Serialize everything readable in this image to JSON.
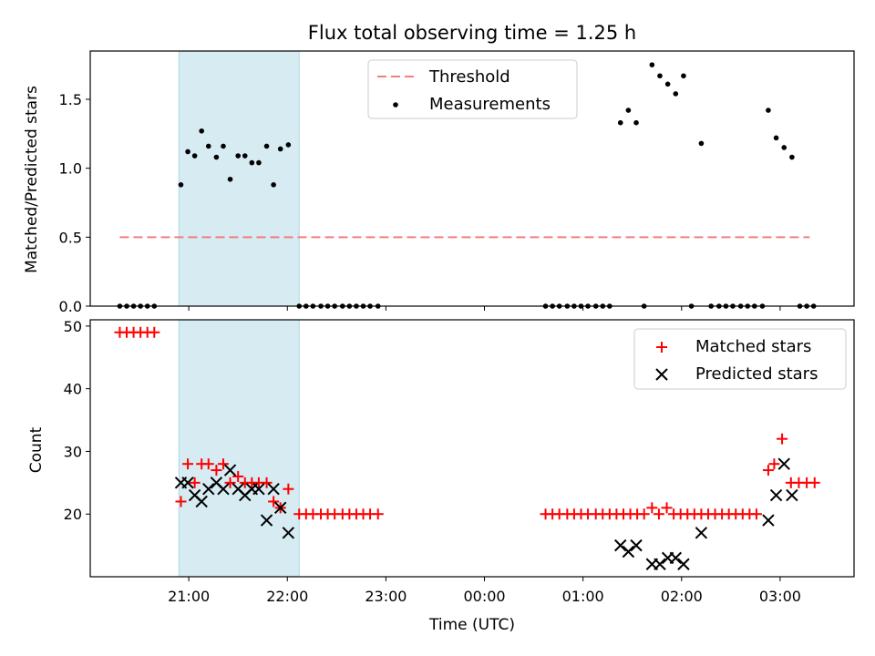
{
  "figure": {
    "title": "Flux total observing time = 1.25 h",
    "xlabel": "Time (UTC)",
    "x_ticks": [
      "21:00",
      "22:00",
      "23:00",
      "00:00",
      "01:00",
      "02:00",
      "03:00"
    ]
  },
  "chart_data": [
    {
      "type": "scatter",
      "panel": "top",
      "title": "Flux total observing time = 1.25 h",
      "ylabel": "Matched/Predicted stars",
      "xlim_hours": [
        20.0,
        27.75
      ],
      "ylim": [
        0,
        1.85
      ],
      "y_ticks": [
        0.0,
        0.5,
        1.0,
        1.5
      ],
      "y_tick_labels": [
        "0.0",
        "0.5",
        "1.0",
        "1.5"
      ],
      "legend_position": "top-center",
      "shaded_interval_hours": [
        20.9,
        22.12
      ],
      "shade_color": "#add8e6",
      "threshold": {
        "name": "Threshold",
        "y": 0.5,
        "x_range_hours": [
          20.3,
          27.3
        ],
        "color": "#f08080"
      },
      "measurements": {
        "name": "Measurements",
        "color": "#000000",
        "points": [
          [
            20.3,
            0.0
          ],
          [
            20.37,
            0.0
          ],
          [
            20.44,
            0.0
          ],
          [
            20.51,
            0.0
          ],
          [
            20.58,
            0.0
          ],
          [
            20.65,
            0.0
          ],
          [
            20.92,
            0.88
          ],
          [
            20.99,
            1.12
          ],
          [
            21.06,
            1.09
          ],
          [
            21.13,
            1.27
          ],
          [
            21.2,
            1.16
          ],
          [
            21.28,
            1.08
          ],
          [
            21.35,
            1.16
          ],
          [
            21.42,
            0.92
          ],
          [
            21.5,
            1.09
          ],
          [
            21.57,
            1.09
          ],
          [
            21.64,
            1.04
          ],
          [
            21.71,
            1.04
          ],
          [
            21.79,
            1.16
          ],
          [
            21.86,
            0.88
          ],
          [
            21.93,
            1.14
          ],
          [
            22.01,
            1.17
          ],
          [
            22.12,
            0.0
          ],
          [
            22.19,
            0.0
          ],
          [
            22.26,
            0.0
          ],
          [
            22.34,
            0.0
          ],
          [
            22.41,
            0.0
          ],
          [
            22.48,
            0.0
          ],
          [
            22.56,
            0.0
          ],
          [
            22.63,
            0.0
          ],
          [
            22.7,
            0.0
          ],
          [
            22.77,
            0.0
          ],
          [
            22.84,
            0.0
          ],
          [
            22.92,
            0.0
          ],
          [
            24.62,
            0.0
          ],
          [
            24.69,
            0.0
          ],
          [
            24.76,
            0.0
          ],
          [
            24.84,
            0.0
          ],
          [
            24.91,
            0.0
          ],
          [
            24.98,
            0.0
          ],
          [
            25.05,
            0.0
          ],
          [
            25.13,
            0.0
          ],
          [
            25.2,
            0.0
          ],
          [
            25.27,
            0.0
          ],
          [
            25.38,
            1.33
          ],
          [
            25.46,
            1.42
          ],
          [
            25.54,
            1.33
          ],
          [
            25.62,
            0.0
          ],
          [
            25.7,
            1.75
          ],
          [
            25.78,
            1.67
          ],
          [
            25.86,
            1.61
          ],
          [
            25.94,
            1.54
          ],
          [
            26.02,
            1.67
          ],
          [
            26.1,
            0.0
          ],
          [
            26.2,
            1.18
          ],
          [
            26.3,
            0.0
          ],
          [
            26.38,
            0.0
          ],
          [
            26.45,
            0.0
          ],
          [
            26.52,
            0.0
          ],
          [
            26.6,
            0.0
          ],
          [
            26.67,
            0.0
          ],
          [
            26.74,
            0.0
          ],
          [
            26.82,
            0.0
          ],
          [
            26.88,
            1.42
          ],
          [
            26.96,
            1.22
          ],
          [
            27.04,
            1.15
          ],
          [
            27.12,
            1.08
          ],
          [
            27.2,
            0.0
          ],
          [
            27.27,
            0.0
          ],
          [
            27.34,
            0.0
          ]
        ]
      }
    },
    {
      "type": "scatter",
      "panel": "bottom",
      "ylabel": "Count",
      "xlabel": "Time (UTC)",
      "xlim_hours": [
        20.0,
        27.75
      ],
      "ylim": [
        10,
        51
      ],
      "y_ticks": [
        20,
        30,
        40,
        50
      ],
      "y_tick_labels": [
        "20",
        "30",
        "40",
        "50"
      ],
      "legend_position": "top-right",
      "shaded_interval_hours": [
        20.9,
        22.12
      ],
      "series": [
        {
          "name": "Matched stars",
          "marker": "plus",
          "color": "#ff0000",
          "points": [
            [
              20.3,
              49
            ],
            [
              20.37,
              49
            ],
            [
              20.44,
              49
            ],
            [
              20.51,
              49
            ],
            [
              20.58,
              49
            ],
            [
              20.65,
              49
            ],
            [
              20.92,
              22
            ],
            [
              20.99,
              28
            ],
            [
              21.06,
              25
            ],
            [
              21.13,
              28
            ],
            [
              21.2,
              28
            ],
            [
              21.28,
              27
            ],
            [
              21.35,
              28
            ],
            [
              21.42,
              25
            ],
            [
              21.5,
              26
            ],
            [
              21.57,
              25
            ],
            [
              21.64,
              25
            ],
            [
              21.71,
              25
            ],
            [
              21.79,
              25
            ],
            [
              21.86,
              22
            ],
            [
              21.93,
              21
            ],
            [
              22.01,
              24
            ],
            [
              22.12,
              20
            ],
            [
              22.19,
              20
            ],
            [
              22.26,
              20
            ],
            [
              22.34,
              20
            ],
            [
              22.41,
              20
            ],
            [
              22.48,
              20
            ],
            [
              22.56,
              20
            ],
            [
              22.63,
              20
            ],
            [
              22.7,
              20
            ],
            [
              22.77,
              20
            ],
            [
              22.84,
              20
            ],
            [
              22.92,
              20
            ],
            [
              24.62,
              20
            ],
            [
              24.69,
              20
            ],
            [
              24.76,
              20
            ],
            [
              24.84,
              20
            ],
            [
              24.91,
              20
            ],
            [
              24.98,
              20
            ],
            [
              25.05,
              20
            ],
            [
              25.13,
              20
            ],
            [
              25.2,
              20
            ],
            [
              25.27,
              20
            ],
            [
              25.34,
              20
            ],
            [
              25.41,
              20
            ],
            [
              25.48,
              20
            ],
            [
              25.55,
              20
            ],
            [
              25.62,
              20
            ],
            [
              25.7,
              21
            ],
            [
              25.77,
              20
            ],
            [
              25.85,
              21
            ],
            [
              25.92,
              20
            ],
            [
              25.99,
              20
            ],
            [
              26.06,
              20
            ],
            [
              26.13,
              20
            ],
            [
              26.2,
              20
            ],
            [
              26.27,
              20
            ],
            [
              26.34,
              20
            ],
            [
              26.41,
              20
            ],
            [
              26.48,
              20
            ],
            [
              26.55,
              20
            ],
            [
              26.62,
              20
            ],
            [
              26.69,
              20
            ],
            [
              26.76,
              20
            ],
            [
              26.88,
              27
            ],
            [
              26.94,
              28
            ],
            [
              27.02,
              32
            ],
            [
              27.11,
              25
            ],
            [
              27.19,
              25
            ],
            [
              27.27,
              25
            ],
            [
              27.35,
              25
            ]
          ]
        },
        {
          "name": "Predicted stars",
          "marker": "x",
          "color": "#000000",
          "points": [
            [
              20.92,
              25
            ],
            [
              20.99,
              25
            ],
            [
              21.06,
              23
            ],
            [
              21.13,
              22
            ],
            [
              21.2,
              24
            ],
            [
              21.28,
              25
            ],
            [
              21.35,
              24
            ],
            [
              21.42,
              27
            ],
            [
              21.5,
              24
            ],
            [
              21.57,
              23
            ],
            [
              21.64,
              24
            ],
            [
              21.71,
              24
            ],
            [
              21.79,
              19
            ],
            [
              21.86,
              24
            ],
            [
              21.93,
              21
            ],
            [
              22.01,
              17
            ],
            [
              25.38,
              15
            ],
            [
              25.46,
              14
            ],
            [
              25.54,
              15
            ],
            [
              25.7,
              12
            ],
            [
              25.78,
              12
            ],
            [
              25.86,
              13
            ],
            [
              25.94,
              13
            ],
            [
              26.02,
              12
            ],
            [
              26.2,
              17
            ],
            [
              26.88,
              19
            ],
            [
              26.96,
              23
            ],
            [
              27.04,
              28
            ],
            [
              27.12,
              23
            ]
          ]
        }
      ]
    }
  ]
}
